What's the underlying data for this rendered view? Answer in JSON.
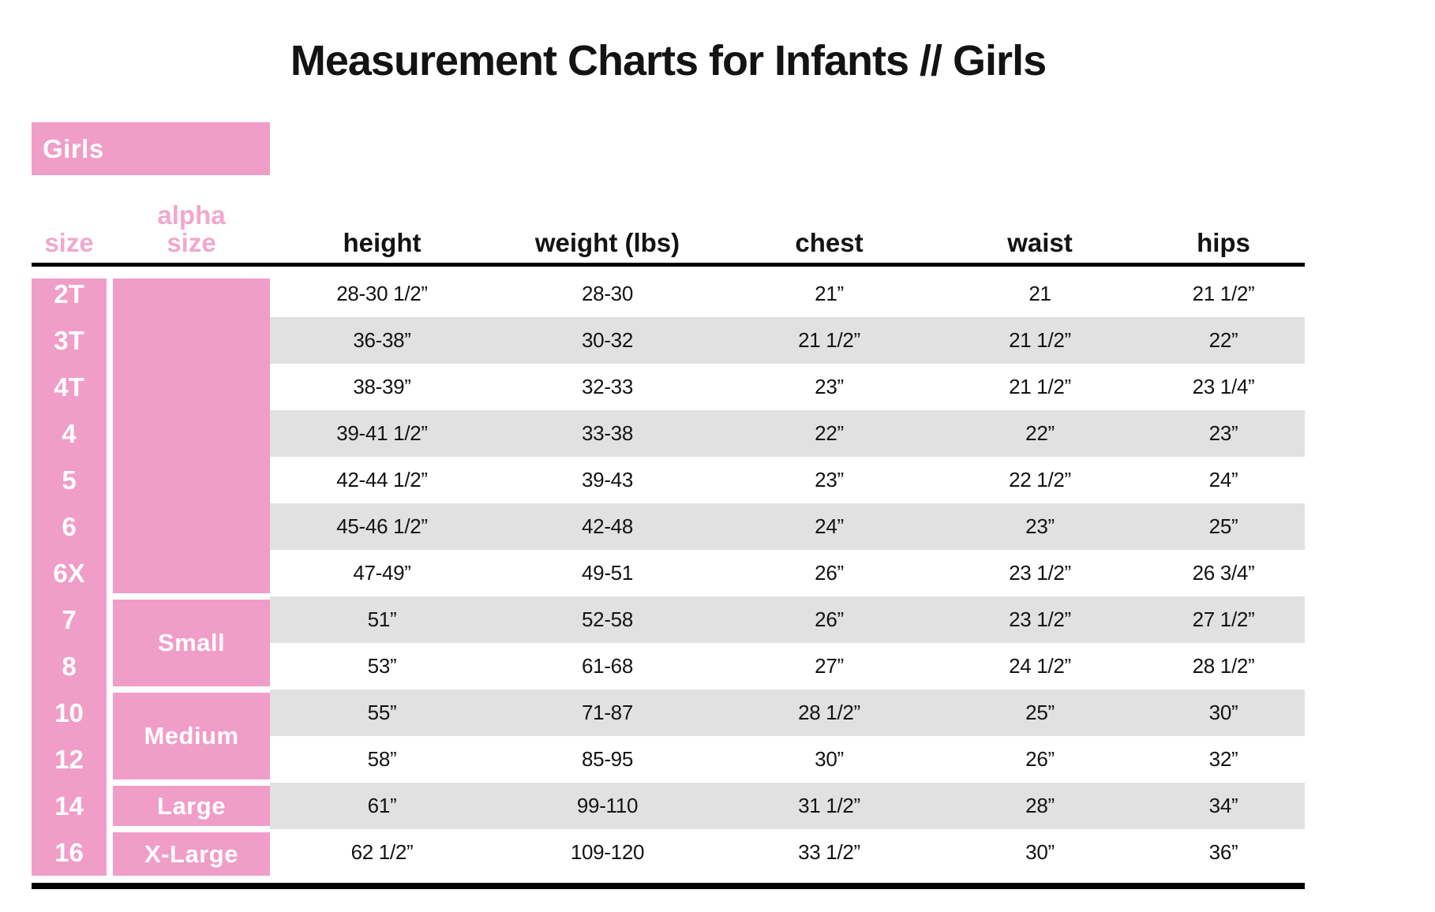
{
  "chart_data": {
    "type": "table",
    "title": "Measurement Charts for Infants // Girls",
    "category_label": "Girls",
    "headers": {
      "size": "size",
      "alpha": "alpha size",
      "measures": [
        "height",
        "weight (lbs)",
        "chest",
        "waist",
        "hips"
      ]
    },
    "alpha_groups": [
      {
        "label": "",
        "row_count": 7
      },
      {
        "label": "Small",
        "row_count": 2
      },
      {
        "label": "Medium",
        "row_count": 2
      },
      {
        "label": "Large",
        "row_count": 1
      },
      {
        "label": "X-Large",
        "row_count": 1
      }
    ],
    "rows": [
      {
        "size": "2T",
        "height": "28-30 1/2”",
        "weight": "28-30",
        "chest": "21”",
        "waist": "21",
        "hips": "21 1/2”"
      },
      {
        "size": "3T",
        "height": "36-38”",
        "weight": "30-32",
        "chest": "21 1/2”",
        "waist": "21 1/2”",
        "hips": "22”"
      },
      {
        "size": "4T",
        "height": "38-39”",
        "weight": "32-33",
        "chest": "23”",
        "waist": "21 1/2”",
        "hips": "23 1/4”"
      },
      {
        "size": "4",
        "height": "39-41 1/2”",
        "weight": "33-38",
        "chest": "22”",
        "waist": "22”",
        "hips": "23”"
      },
      {
        "size": "5",
        "height": "42-44 1/2”",
        "weight": "39-43",
        "chest": "23”",
        "waist": "22 1/2”",
        "hips": "24”"
      },
      {
        "size": "6",
        "height": "45-46 1/2”",
        "weight": "42-48",
        "chest": "24”",
        "waist": "23”",
        "hips": "25”"
      },
      {
        "size": "6X",
        "height": "47-49”",
        "weight": "49-51",
        "chest": "26”",
        "waist": "23 1/2”",
        "hips": "26 3/4”"
      },
      {
        "size": "7",
        "height": "51”",
        "weight": "52-58",
        "chest": "26”",
        "waist": "23 1/2”",
        "hips": "27 1/2”"
      },
      {
        "size": "8",
        "height": "53”",
        "weight": "61-68",
        "chest": "27”",
        "waist": "24 1/2”",
        "hips": "28 1/2”"
      },
      {
        "size": "10",
        "height": "55”",
        "weight": "71-87",
        "chest": "28 1/2”",
        "waist": "25”",
        "hips": "30”"
      },
      {
        "size": "12",
        "height": "58”",
        "weight": "85-95",
        "chest": "30”",
        "waist": "26”",
        "hips": "32”"
      },
      {
        "size": "14",
        "height": "61”",
        "weight": "99-110",
        "chest": "31 1/2”",
        "waist": "28”",
        "hips": "34”"
      },
      {
        "size": "16",
        "height": "62 1/2”",
        "weight": "109-120",
        "chest": "33 1/2”",
        "waist": "30”",
        "hips": "36”"
      }
    ],
    "colors": {
      "pink": "#F09DC8",
      "pink_header_text": "#F2A7CE",
      "stripe_gray": "#E1E1E1",
      "text": "#131313"
    },
    "layout": {
      "grid": "off",
      "striped_rows": true,
      "legend_position": "none"
    }
  }
}
